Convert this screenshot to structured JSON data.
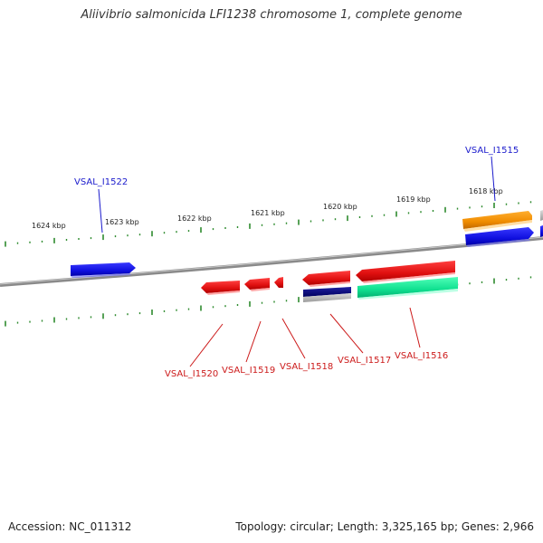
{
  "title": "Aliivibrio salmonicida LFI1238 chromosome 1, complete genome",
  "footer": {
    "accession": "Accession: NC_011312",
    "summary": "Topology: circular; Length: 3,325,165 bp; Genes: 2,966"
  },
  "scale": {
    "labels": [
      "1624 kbp",
      "1623 kbp",
      "1622 kbp",
      "1621 kbp",
      "1620 kbp",
      "1619 kbp",
      "1618 kbp"
    ]
  },
  "colors": {
    "backbone": "#8a8a8a",
    "tick": "#2e8b2e",
    "forward_label": "#1a1acc",
    "reverse_label": "#cc1a1a",
    "red_gene": "#e01010",
    "blue_gene": "#1010e0",
    "orange_gene": "#f08c00",
    "navy_gene": "#000080",
    "green_gene": "#10e090",
    "gray_gene": "#b0b0b0"
  },
  "genes": {
    "top": [
      "VSAL_I1522",
      "VSAL_I1515"
    ],
    "bottom": [
      "VSAL_I1520",
      "VSAL_I1519",
      "VSAL_I1518",
      "VSAL_I1517",
      "VSAL_I1516"
    ]
  }
}
